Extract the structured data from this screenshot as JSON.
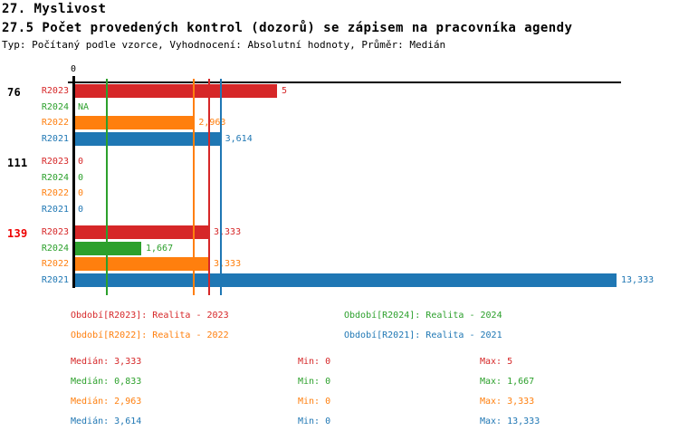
{
  "header": {
    "title1": "27. Myslivost",
    "title2": "27.5 Počet provedených kontrol (dozorů) se zápisem na pracovníka agendy",
    "subtitle": "Typ: Počítaný podle vzorce, Vyhodnocení: Absolutní hodnoty, Průměr: Medián"
  },
  "colors": {
    "R2023": "#d62728",
    "R2024": "#2ca02c",
    "R2022": "#ff7f0e",
    "R2021": "#1f77b4",
    "axis": "#000000",
    "group_label": "#000000",
    "group_label_alert": "#ee0000"
  },
  "chart_data": {
    "type": "bar",
    "orientation": "horizontal",
    "title": "27.5 Počet provedených kontrol (dozorů) se zápisem na pracovníka agendy",
    "xlabel": "",
    "ylabel": "",
    "x_axis": {
      "origin_label": "0",
      "min": 0,
      "max_extent": 13.5,
      "grid": false
    },
    "series_order": [
      "R2023",
      "R2024",
      "R2022",
      "R2021"
    ],
    "groups": [
      {
        "label": "76",
        "alert": false,
        "bars": [
          {
            "series": "R2023",
            "value": 5,
            "display": "5"
          },
          {
            "series": "R2024",
            "value": null,
            "display": "NA"
          },
          {
            "series": "R2022",
            "value": 2.963,
            "display": "2,963"
          },
          {
            "series": "R2021",
            "value": 3.614,
            "display": "3,614"
          }
        ]
      },
      {
        "label": "111",
        "alert": false,
        "bars": [
          {
            "series": "R2023",
            "value": 0,
            "display": "0"
          },
          {
            "series": "R2024",
            "value": 0,
            "display": "0"
          },
          {
            "series": "R2022",
            "value": 0,
            "display": "0"
          },
          {
            "series": "R2021",
            "value": 0,
            "display": "0"
          }
        ]
      },
      {
        "label": "139",
        "alert": true,
        "bars": [
          {
            "series": "R2023",
            "value": 3.333,
            "display": "3,333"
          },
          {
            "series": "R2024",
            "value": 1.667,
            "display": "1,667"
          },
          {
            "series": "R2022",
            "value": 3.333,
            "display": "3,333"
          },
          {
            "series": "R2021",
            "value": 13.333,
            "display": "13,333"
          }
        ]
      }
    ],
    "median_lines": [
      {
        "series": "R2023",
        "value": 3.333
      },
      {
        "series": "R2024",
        "value": 0.833
      },
      {
        "series": "R2022",
        "value": 2.963
      },
      {
        "series": "R2021",
        "value": 3.614
      }
    ],
    "legend_position": "bottom"
  },
  "legend": {
    "items": [
      {
        "series": "R2023",
        "label": "Období[R2023]: Realita - 2023"
      },
      {
        "series": "R2024",
        "label": "Období[R2024]: Realita - 2024"
      },
      {
        "series": "R2022",
        "label": "Období[R2022]: Realita - 2022"
      },
      {
        "series": "R2021",
        "label": "Období[R2021]: Realita - 2021"
      }
    ]
  },
  "stats": {
    "rows": [
      {
        "series": "R2023",
        "median": "Medián: 3,333",
        "min": "Min: 0",
        "max": "Max: 5"
      },
      {
        "series": "R2024",
        "median": "Medián: 0,833",
        "min": "Min: 0",
        "max": "Max: 1,667"
      },
      {
        "series": "R2022",
        "median": "Medián: 2,963",
        "min": "Min: 0",
        "max": "Max: 3,333"
      },
      {
        "series": "R2021",
        "median": "Medián: 3,614",
        "min": "Min: 0",
        "max": "Max: 13,333"
      }
    ]
  }
}
